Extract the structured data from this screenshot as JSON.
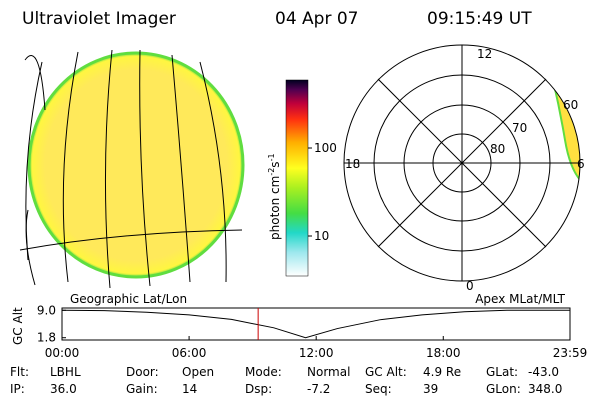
{
  "header": {
    "title": "Ultraviolet Imager",
    "date": "04 Apr 07",
    "time": "09:15:49 UT"
  },
  "colorbar": {
    "label": {
      "text": "photon cm",
      "exp1": "-2",
      "unit2": "s",
      "exp2": "-1"
    },
    "ticks": [
      "100",
      "10"
    ]
  },
  "polar": {
    "hour_labels": [
      "12",
      "18",
      "6",
      "0"
    ],
    "lat_labels": [
      "60",
      "70",
      "80"
    ]
  },
  "chart_data": {
    "type": "line",
    "ylabel": "GC Alt",
    "annotations": [
      "Geographic Lat/Lon",
      "Apex MLat/MLT"
    ],
    "x": [
      0,
      2,
      4,
      6,
      8,
      10,
      11.5,
      13,
      15,
      17,
      19,
      21,
      23.983
    ],
    "values": [
      9.0,
      8.9,
      8.5,
      7.8,
      6.6,
      4.4,
      1.8,
      4.2,
      6.5,
      7.8,
      8.6,
      9.0,
      9.0
    ],
    "color": "#000000",
    "marker_x": 9.26,
    "marker_color": "#cc0000",
    "xlim": [
      0,
      23.983
    ],
    "ylim": [
      1.2,
      9.6
    ],
    "xticks": [
      {
        "value": 0,
        "label": "00:00"
      },
      {
        "value": 6,
        "label": "06:00"
      },
      {
        "value": 12,
        "label": "12:00"
      },
      {
        "value": 18,
        "label": "18:00"
      },
      {
        "value": 23.983,
        "label": "23:59"
      }
    ],
    "yticks": [
      {
        "value": 9.0,
        "label": "9.0"
      },
      {
        "value": 1.8,
        "label": "1.8"
      }
    ]
  },
  "status": {
    "rows": [
      [
        [
          "Flt:",
          "LBHL"
        ],
        [
          "Door:",
          "Open"
        ],
        [
          "Mode:",
          "Normal"
        ],
        [
          "GC Alt:",
          "4.9 Re"
        ],
        [
          "GLat:",
          "-43.0"
        ]
      ],
      [
        [
          "IP:",
          "36.0"
        ],
        [
          "Gain:",
          "14"
        ],
        [
          "Dsp:",
          "-7.2"
        ],
        [
          "Seq:",
          "39"
        ],
        [
          "GLon:",
          "348.0"
        ]
      ]
    ]
  }
}
